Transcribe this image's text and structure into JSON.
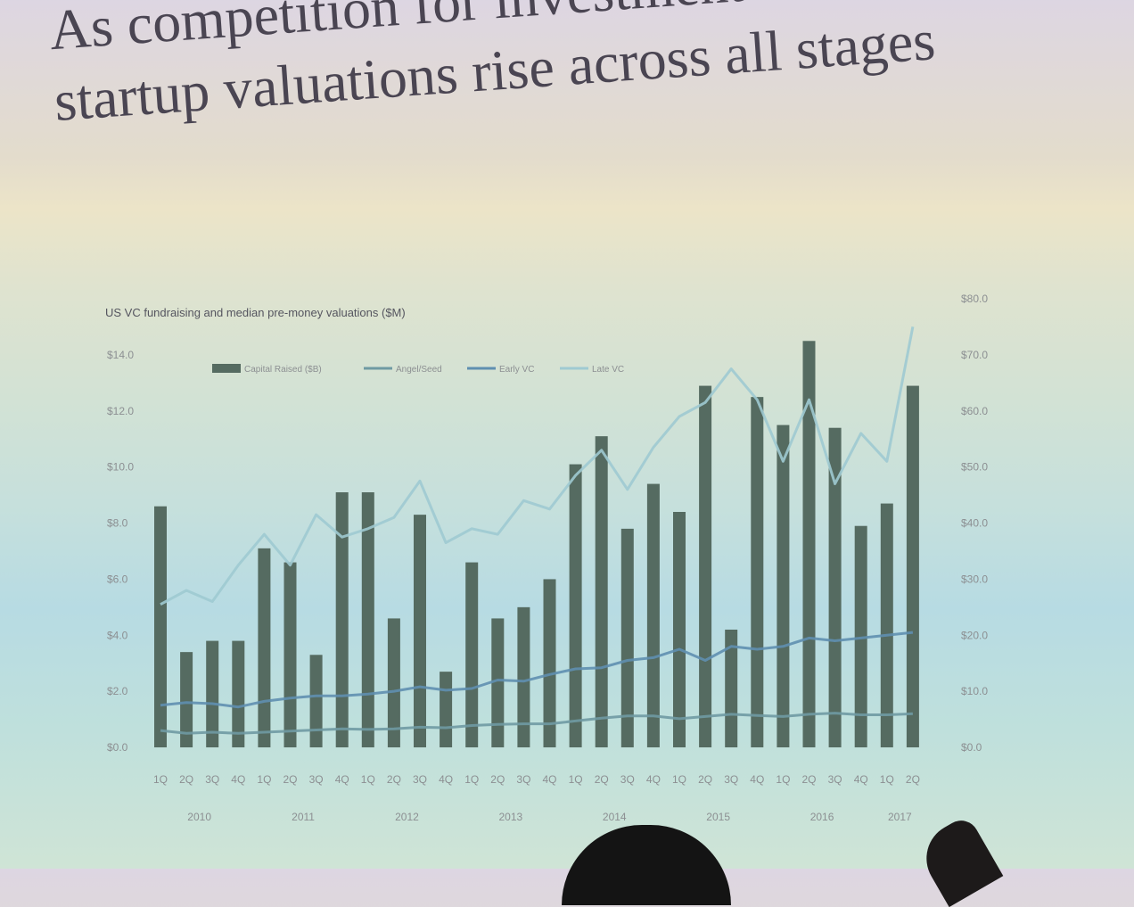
{
  "slide": {
    "title_line1": "As competition for investment increases,",
    "title_line2": "startup valuations rise across all stages"
  },
  "colors": {
    "bar": "#556b61",
    "angel_seed": "#6f9aa3",
    "early_vc": "#5f8fb0",
    "late_vc": "#9fcad2"
  },
  "chart_data": {
    "type": "bar",
    "title": "US VC fundraising and median pre-money valuations ($M)",
    "legend_placement": "top",
    "categories": [
      "1Q",
      "2Q",
      "3Q",
      "4Q",
      "1Q",
      "2Q",
      "3Q",
      "4Q",
      "1Q",
      "2Q",
      "3Q",
      "4Q",
      "1Q",
      "2Q",
      "3Q",
      "4Q",
      "1Q",
      "2Q",
      "3Q",
      "4Q",
      "1Q",
      "2Q",
      "3Q",
      "4Q",
      "1Q",
      "2Q",
      "3Q",
      "4Q",
      "1Q",
      "2Q"
    ],
    "years": [
      "2010",
      "2011",
      "2012",
      "2013",
      "2014",
      "2015",
      "2016",
      "2017"
    ],
    "y_left": {
      "ticks": [
        "$0.0",
        "$2.0",
        "$4.0",
        "$6.0",
        "$8.0",
        "$10.0",
        "$12.0",
        "$14.0"
      ],
      "range": [
        0,
        14
      ]
    },
    "y_right": {
      "ticks": [
        "$0.0",
        "$10.0",
        "$20.0",
        "$30.0",
        "$40.0",
        "$50.0",
        "$60.0",
        "$70.0",
        "$80.0"
      ],
      "range": [
        0,
        80
      ]
    },
    "series": [
      {
        "name": "Capital Raised ($B)",
        "type": "bar",
        "axis": "left",
        "values": [
          8.6,
          3.4,
          3.8,
          3.8,
          7.1,
          6.6,
          3.3,
          9.1,
          9.1,
          4.6,
          8.3,
          2.7,
          6.6,
          4.6,
          5.0,
          6.0,
          10.1,
          11.1,
          7.8,
          9.4,
          8.4,
          12.9,
          4.2,
          12.5,
          11.5,
          14.5,
          11.4,
          7.9,
          8.7,
          12.9
        ]
      },
      {
        "name": "Angel/Seed",
        "type": "line",
        "axis": "right",
        "values": [
          3.0,
          2.5,
          2.7,
          2.5,
          2.7,
          2.9,
          3.1,
          3.3,
          3.2,
          3.3,
          3.6,
          3.5,
          3.9,
          4.1,
          4.2,
          4.2,
          4.7,
          5.2,
          5.6,
          5.6,
          5.1,
          5.5,
          5.9,
          5.7,
          5.5,
          5.9,
          6.1,
          5.8,
          5.8,
          6.0
        ]
      },
      {
        "name": "Early VC",
        "type": "line",
        "axis": "right",
        "values": [
          7.5,
          8.0,
          7.8,
          7.2,
          8.2,
          8.8,
          9.2,
          9.2,
          9.5,
          10.0,
          10.8,
          10.2,
          10.5,
          12.0,
          11.8,
          13.0,
          14.0,
          14.2,
          15.5,
          16.0,
          17.5,
          15.5,
          18.0,
          17.5,
          18.0,
          19.5,
          19.0,
          19.5,
          20.0,
          20.5
        ]
      },
      {
        "name": "Late VC",
        "type": "line",
        "axis": "right",
        "values": [
          25.5,
          28.0,
          26.0,
          32.5,
          38.0,
          32.5,
          41.5,
          37.5,
          39.0,
          41.0,
          47.5,
          36.5,
          39.0,
          38.0,
          44.0,
          42.5,
          48.5,
          53.0,
          46.0,
          53.5,
          59.0,
          61.5,
          67.5,
          62.0,
          51.0,
          62.0,
          47.0,
          56.0,
          51.0,
          75.0
        ]
      }
    ]
  }
}
